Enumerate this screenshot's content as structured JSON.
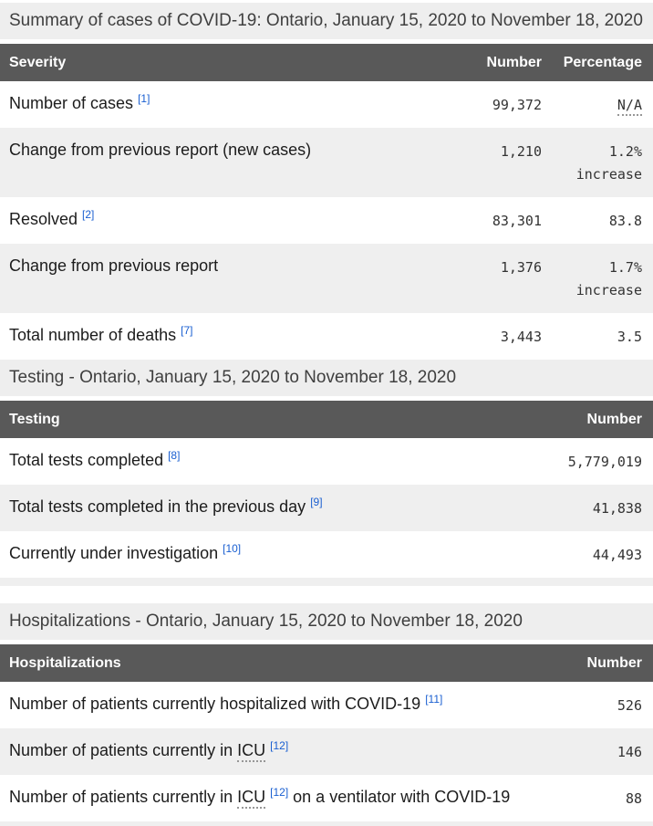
{
  "colors": {
    "table_header_bg": "#595959",
    "table_header_text": "#ffffff",
    "caption_bg": "#eeeeee",
    "caption_text": "#3f3f3f",
    "zebra_row_bg": "#efefef",
    "row_bg": "#ffffff",
    "label_text": "#1c1c1c",
    "value_text": "#333333",
    "footnote_link_blue": "#1a5fd1"
  },
  "sections": [
    {
      "id": "cases",
      "title": "Summary of cases of COVID-19: Ontario, January 15, 2020 to November 18, 2020",
      "columns": [
        "Severity",
        "Number",
        "Percentage"
      ],
      "rows": [
        {
          "label": [
            {
              "k": "t",
              "v": "Number of cases "
            },
            {
              "k": "sup",
              "v": "[1]"
            }
          ],
          "number": "99,372",
          "percentage": [
            {
              "k": "abbr",
              "v": "N/A"
            }
          ]
        },
        {
          "label": [
            {
              "k": "t",
              "v": "Change from previous report (new cases)"
            }
          ],
          "number": "1,210",
          "percentage": [
            {
              "k": "t",
              "v": "1.2%"
            },
            {
              "k": "br"
            },
            {
              "k": "t",
              "v": "increase"
            }
          ]
        },
        {
          "label": [
            {
              "k": "t",
              "v": "Resolved "
            },
            {
              "k": "sup",
              "v": "[2]"
            }
          ],
          "number": "83,301",
          "percentage": [
            {
              "k": "t",
              "v": "83.8"
            }
          ]
        },
        {
          "label": [
            {
              "k": "t",
              "v": "Change from previous report"
            }
          ],
          "number": "1,376",
          "percentage": [
            {
              "k": "t",
              "v": "1.7%"
            },
            {
              "k": "br"
            },
            {
              "k": "t",
              "v": "increase"
            }
          ]
        },
        {
          "label": [
            {
              "k": "t",
              "v": "Total number of deaths "
            },
            {
              "k": "sup",
              "v": "[7]"
            }
          ],
          "number": "3,443",
          "percentage": [
            {
              "k": "t",
              "v": "3.5"
            }
          ]
        }
      ]
    },
    {
      "id": "testing",
      "title": "Testing - Ontario, January 15, 2020 to November 18, 2020",
      "columns": [
        "Testing",
        "Number"
      ],
      "rows": [
        {
          "label": [
            {
              "k": "t",
              "v": "Total tests completed "
            },
            {
              "k": "sup",
              "v": "[8]"
            }
          ],
          "number": "5,779,019"
        },
        {
          "label": [
            {
              "k": "t",
              "v": "Total tests completed in the previous day "
            },
            {
              "k": "sup",
              "v": "[9]"
            }
          ],
          "number": "41,838"
        },
        {
          "label": [
            {
              "k": "t",
              "v": "Currently under investigation "
            },
            {
              "k": "sup",
              "v": "[10]"
            }
          ],
          "number": "44,493"
        }
      ]
    },
    {
      "id": "hospitalizations",
      "title": "Hospitalizations - Ontario, January 15, 2020 to November 18, 2020",
      "columns": [
        "Hospitalizations",
        "Number"
      ],
      "rows": [
        {
          "label": [
            {
              "k": "t",
              "v": "Number of patients currently hospitalized with COVID-19 "
            },
            {
              "k": "sup",
              "v": "[11]"
            }
          ],
          "number": "526"
        },
        {
          "label": [
            {
              "k": "t",
              "v": "Number of patients currently in "
            },
            {
              "k": "abbr",
              "v": "ICU"
            },
            {
              "k": "t",
              "v": " "
            },
            {
              "k": "sup",
              "v": "[12]"
            }
          ],
          "number": "146"
        },
        {
          "label": [
            {
              "k": "t",
              "v": "Number of patients currently in "
            },
            {
              "k": "abbr",
              "v": "ICU"
            },
            {
              "k": "t",
              "v": " "
            },
            {
              "k": "sup",
              "v": "[12]"
            },
            {
              "k": "t",
              "v": " on a ventilator with COVID-19"
            }
          ],
          "number": "88"
        }
      ]
    }
  ]
}
